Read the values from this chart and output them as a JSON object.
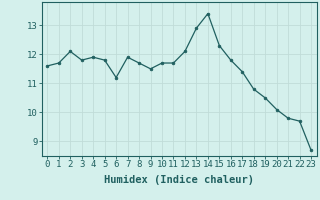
{
  "x": [
    0,
    1,
    2,
    3,
    4,
    5,
    6,
    7,
    8,
    9,
    10,
    11,
    12,
    13,
    14,
    15,
    16,
    17,
    18,
    19,
    20,
    21,
    22,
    23
  ],
  "y": [
    11.6,
    11.7,
    12.1,
    11.8,
    11.9,
    11.8,
    11.2,
    11.9,
    11.7,
    11.5,
    11.7,
    11.7,
    12.1,
    12.9,
    13.4,
    12.3,
    11.8,
    11.4,
    10.8,
    10.5,
    10.1,
    9.8,
    9.7,
    8.7
  ],
  "xlabel": "Humidex (Indice chaleur)",
  "ylim": [
    8.5,
    13.8
  ],
  "xlim": [
    -0.5,
    23.5
  ],
  "yticks": [
    9,
    10,
    11,
    12,
    13
  ],
  "xticks": [
    0,
    1,
    2,
    3,
    4,
    5,
    6,
    7,
    8,
    9,
    10,
    11,
    12,
    13,
    14,
    15,
    16,
    17,
    18,
    19,
    20,
    21,
    22,
    23
  ],
  "line_color": "#206060",
  "marker_color": "#206060",
  "bg_color": "#d4f0ec",
  "grid_color": "#c0dcd8",
  "axis_color": "#206060",
  "label_fontsize": 7.5,
  "tick_fontsize": 6.5
}
